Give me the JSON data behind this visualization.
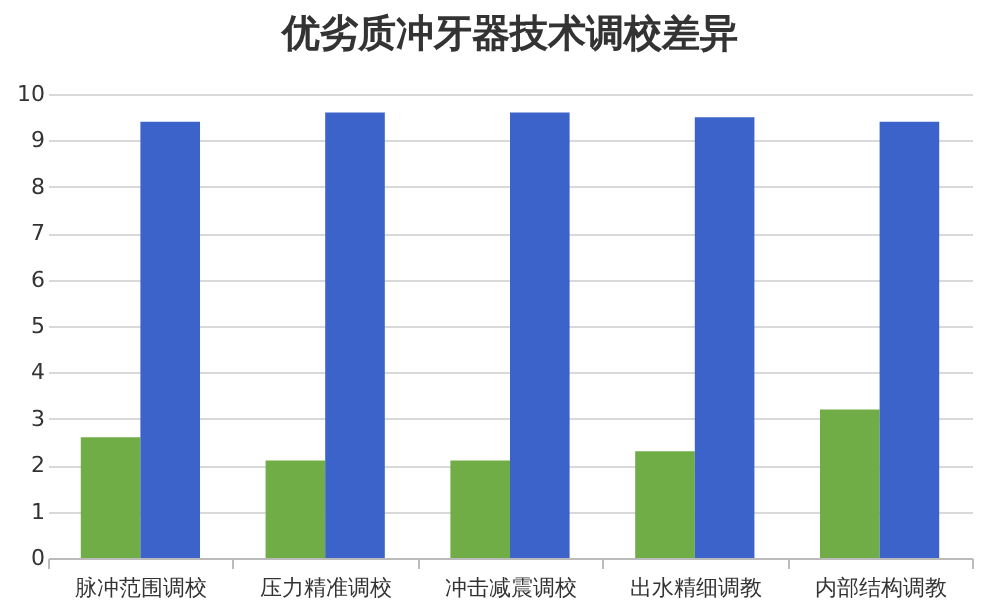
{
  "chart_data": {
    "type": "bar",
    "title": "优劣质冲牙器技术调校差异",
    "categories": [
      "脉冲范围调校",
      "压力精准调校",
      "冲击减震调校",
      "出水精细调教",
      "内部结构调教"
    ],
    "series": [
      {
        "color": "#70ad47",
        "values": [
          2.6,
          2.1,
          2.1,
          2.3,
          3.2
        ]
      },
      {
        "color": "#3b63c9",
        "values": [
          9.4,
          9.6,
          9.6,
          9.5,
          9.4
        ]
      }
    ],
    "ylim": [
      0,
      10
    ],
    "yticks": [
      0,
      1,
      2,
      3,
      4,
      5,
      6,
      7,
      8,
      9,
      10
    ],
    "grid": "y",
    "legend": false
  }
}
